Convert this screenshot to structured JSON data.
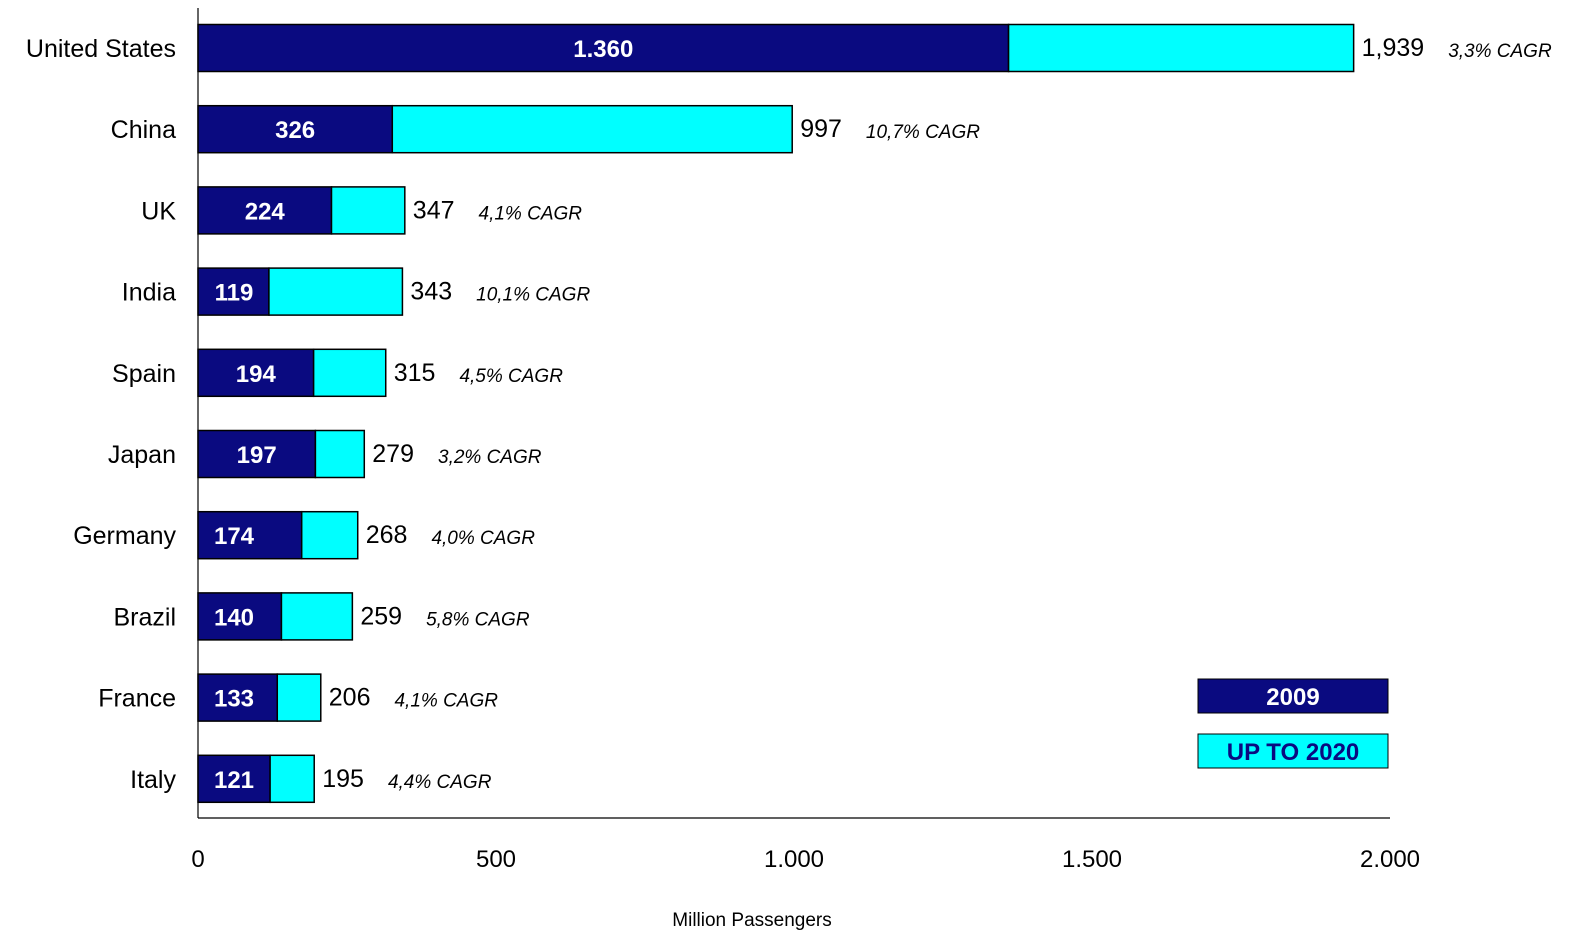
{
  "chart_data": {
    "type": "bar",
    "orientation": "horizontal",
    "stacked": true,
    "categories": [
      "United States",
      "China",
      "UK",
      "India",
      "Spain",
      "Japan",
      "Germany",
      "Brazil",
      "France",
      "Italy"
    ],
    "series": [
      {
        "name": "2009",
        "values": [
          1360,
          326,
          224,
          119,
          194,
          197,
          174,
          140,
          133,
          121
        ]
      },
      {
        "name": "UP TO 2020",
        "values": [
          579,
          671,
          123,
          224,
          121,
          82,
          94,
          119,
          73,
          74
        ]
      }
    ],
    "base_labels": [
      "1.360",
      "326",
      "224",
      "119",
      "194",
      "197",
      "174",
      "140",
      "133",
      "121"
    ],
    "totals": [
      1939,
      997,
      347,
      343,
      315,
      279,
      268,
      259,
      206,
      195
    ],
    "total_labels": [
      "1,939",
      "997",
      "347",
      "343",
      "315",
      "279",
      "268",
      "259",
      "206",
      "195"
    ],
    "cagr_labels": [
      "3,3% CAGR",
      "10,7% CAGR",
      "4,1% CAGR",
      "10,1% CAGR",
      "4,5% CAGR",
      "3,2% CAGR",
      "4,0% CAGR",
      "5,8% CAGR",
      "4,1% CAGR",
      "4,4% CAGR"
    ],
    "xlabel": "Million Passengers",
    "ylabel": "",
    "xlim": [
      0,
      2000
    ],
    "x_ticks": [
      0,
      500,
      1000,
      1500,
      2000
    ],
    "x_tick_labels": [
      "0",
      "500",
      "1.000",
      "1.500",
      "2.000"
    ],
    "grid": false,
    "legend": {
      "position": "bottom-right",
      "entries": [
        "2009",
        "UP TO 2020"
      ]
    },
    "colors": {
      "base": "#0a0a80",
      "growth": "#00ffff",
      "outline": "#000000"
    }
  }
}
